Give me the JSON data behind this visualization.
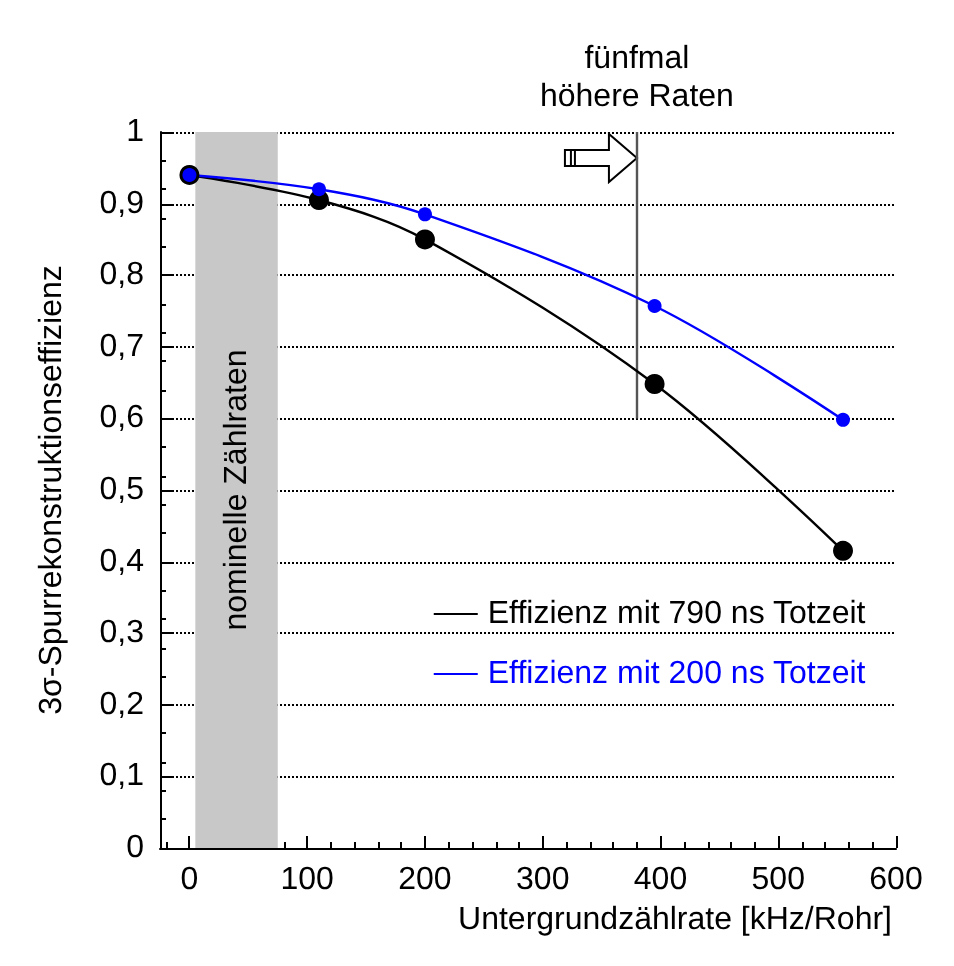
{
  "chart_data": {
    "type": "line",
    "xlabel": "Untergrundzählrate [kHz/Rohr]",
    "ylabel": "3σ-Spurrekonstruktionseffizienz",
    "x": [
      0,
      110,
      200,
      395,
      555
    ],
    "series": [
      {
        "name": "Effizienz mit 790 ns Totzeit",
        "color": "#000000",
        "values": [
          0.94,
          0.905,
          0.85,
          0.648,
          0.415
        ]
      },
      {
        "name": "Effizienz mit 200 ns Totzeit",
        "color": "#0000ff",
        "values": [
          0.94,
          0.92,
          0.885,
          0.757,
          0.598
        ]
      }
    ],
    "xlim": [
      -25,
      600
    ],
    "xticks": [
      0,
      100,
      200,
      300,
      400,
      500,
      600
    ],
    "ylim": [
      0,
      1
    ],
    "yticks": [
      {
        "value": 0,
        "label": "0"
      },
      {
        "value": 0.1,
        "label": "0,1"
      },
      {
        "value": 0.2,
        "label": "0,2"
      },
      {
        "value": 0.3,
        "label": "0,3"
      },
      {
        "value": 0.4,
        "label": "0,4"
      },
      {
        "value": 0.5,
        "label": "0,5"
      },
      {
        "value": 0.6,
        "label": "0,6"
      },
      {
        "value": 0.7,
        "label": "0,7"
      },
      {
        "value": 0.8,
        "label": "0,8"
      },
      {
        "value": 0.9,
        "label": "0,9"
      },
      {
        "value": 1,
        "label": "1"
      }
    ],
    "bands": [
      {
        "axis": "x",
        "from": 5,
        "to": 75,
        "label": "nominelle Zählraten",
        "color": "#c8c8c8"
      }
    ],
    "ref_lines": [
      {
        "axis": "x",
        "value": 380,
        "label": "fünfmal\nhöhere Raten",
        "color": "#555555"
      }
    ],
    "grid": "y",
    "legend": "right",
    "marker": "circle",
    "line_style": "solid"
  }
}
